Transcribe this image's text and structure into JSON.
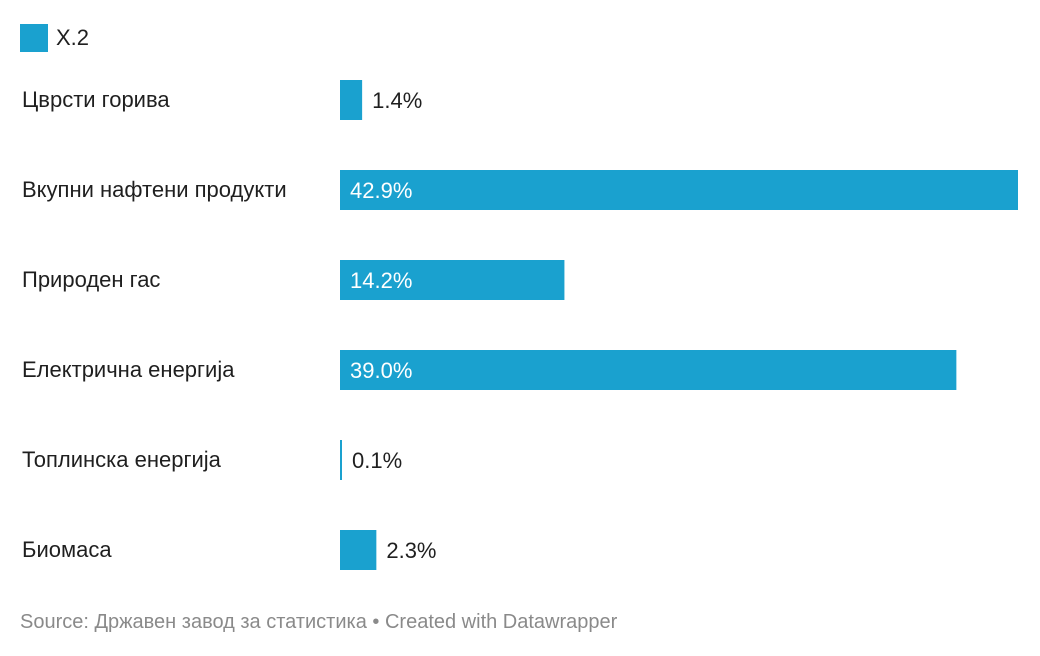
{
  "legend": {
    "label": "X.2",
    "color": "#1aa1cf"
  },
  "footer": {
    "source": "Source: Државен завод за статистика",
    "separator": "•",
    "credit": "Created with Datawrapper"
  },
  "chart_data": {
    "type": "bar",
    "orientation": "horizontal",
    "categories": [
      "Цврсти горива",
      "Вкупни нафтени продукти",
      "Природен гас",
      "Електрична енергија",
      "Топлинска енергија",
      "Биомаса"
    ],
    "series": [
      {
        "name": "X.2",
        "values": [
          1.4,
          42.9,
          14.2,
          39.0,
          0.1,
          2.3
        ],
        "labels": [
          "1.4%",
          "42.9%",
          "14.2%",
          "39.0%",
          "0.1%",
          "2.3%"
        ],
        "color": "#1aa1cf"
      }
    ],
    "xlim": [
      0,
      42.9
    ],
    "grid": false,
    "legend_position": "top-left"
  }
}
